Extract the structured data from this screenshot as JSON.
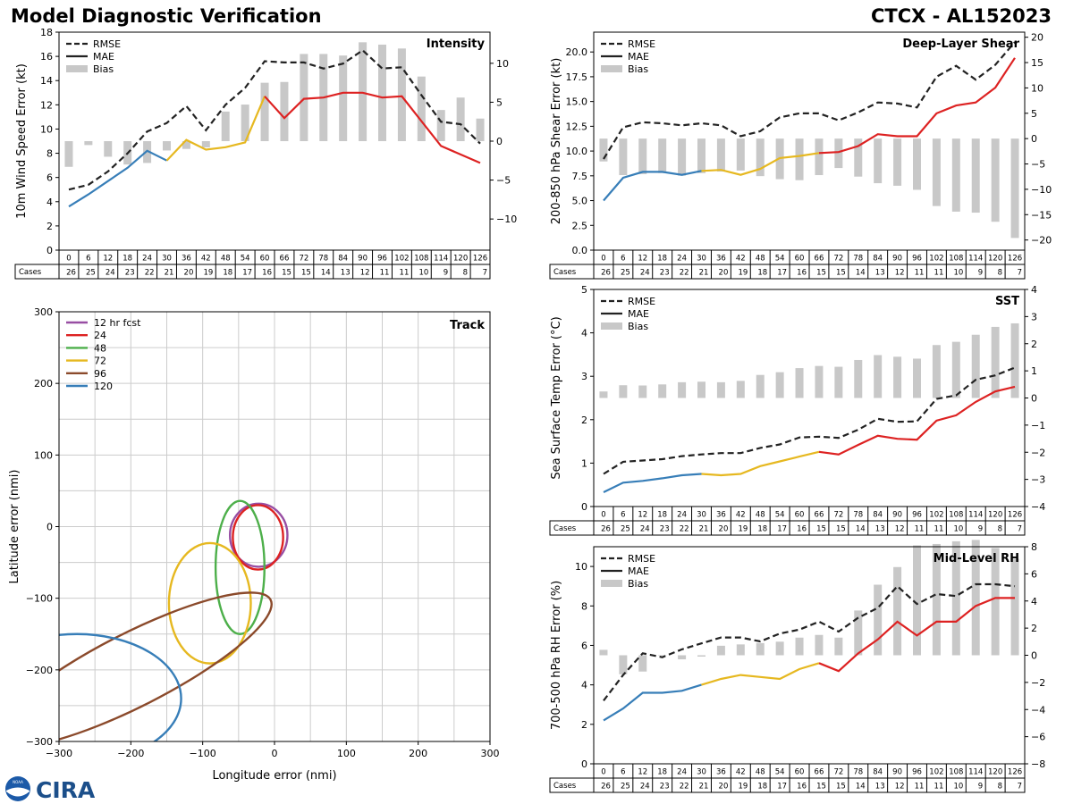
{
  "header": {
    "title": "Model Diagnostic Verification",
    "storm": "CTCX - AL152023"
  },
  "logos": {
    "noaa": "NOAA",
    "cira": "CIRA"
  },
  "colors": {
    "rmse": "#222222",
    "bias": "#c8c8c8",
    "grid": "#cccccc",
    "seg_blue": "#377eb8",
    "seg_yellow": "#e6b820",
    "seg_red": "#dd2222",
    "track_12": "#984ea3",
    "track_24": "#dd2222",
    "track_48": "#4daf4a",
    "track_72": "#e6b820",
    "track_96": "#8b4a2b",
    "track_120": "#377eb8"
  },
  "cases_label": "Cases",
  "chart_data": [
    {
      "id": "intensity",
      "type": "line",
      "title": "Intensity",
      "ylabel": "10m Wind Speed Error (kt)",
      "ylim": [
        0,
        18
      ],
      "yticks": [
        0,
        2,
        4,
        6,
        8,
        10,
        12,
        14,
        16,
        18
      ],
      "y2lim": [
        -14,
        14
      ],
      "y2ticks": [
        -10,
        -5,
        0,
        5,
        10
      ],
      "legend": [
        "RMSE",
        "MAE",
        "Bias"
      ],
      "hours": [
        0,
        6,
        12,
        18,
        24,
        30,
        36,
        42,
        48,
        54,
        60,
        66,
        72,
        78,
        84,
        90,
        96,
        102,
        108,
        114,
        120,
        126
      ],
      "cases": [
        26,
        25,
        24,
        23,
        22,
        21,
        20,
        19,
        18,
        17,
        16,
        15,
        15,
        14,
        13,
        12,
        11,
        11,
        10,
        9,
        8,
        7
      ],
      "rmse": [
        5.0,
        5.4,
        6.5,
        8.0,
        9.8,
        10.5,
        11.9,
        9.9,
        12.0,
        13.4,
        15.6,
        15.5,
        15.5,
        15.0,
        15.4,
        16.5,
        15.0,
        15.1,
        12.8,
        10.6,
        10.4,
        8.8
      ],
      "mae": [
        3.6,
        4.6,
        5.7,
        6.8,
        8.2,
        7.4,
        9.1,
        8.3,
        8.5,
        8.9,
        12.7,
        10.9,
        12.5,
        12.6,
        13.0,
        13.0,
        12.6,
        12.7,
        null,
        8.6,
        null,
        7.2
      ],
      "bias": [
        -3.3,
        -0.5,
        -2.0,
        -3.0,
        -2.8,
        -1.2,
        -1.0,
        -0.8,
        3.8,
        4.7,
        7.5,
        7.6,
        11.2,
        11.2,
        11.0,
        12.7,
        12.4,
        11.9,
        8.3,
        4.0,
        5.6,
        2.9
      ],
      "segments": [
        {
          "color": "seg_blue",
          "from": 0,
          "to": 5
        },
        {
          "color": "seg_yellow",
          "from": 5,
          "to": 10
        },
        {
          "color": "seg_red",
          "from": 10,
          "to": 21
        }
      ]
    },
    {
      "id": "shear",
      "type": "line",
      "title": "Deep-Layer Shear",
      "ylabel": "200-850 hPa Shear Error (kt)",
      "ylim": [
        0,
        22
      ],
      "yticks": [
        0.0,
        2.5,
        5.0,
        7.5,
        10.0,
        12.5,
        15.0,
        17.5,
        20.0
      ],
      "y2lim": [
        -22,
        21
      ],
      "y2ticks": [
        -20,
        -15,
        -10,
        -5,
        0,
        5,
        10,
        15,
        20
      ],
      "legend": [
        "RMSE",
        "MAE",
        "Bias"
      ],
      "hours": [
        0,
        6,
        12,
        18,
        24,
        30,
        36,
        42,
        48,
        54,
        60,
        66,
        72,
        78,
        84,
        90,
        96,
        102,
        108,
        114,
        120,
        126
      ],
      "cases": [
        26,
        25,
        24,
        23,
        22,
        21,
        20,
        19,
        18,
        17,
        16,
        15,
        15,
        14,
        13,
        12,
        11,
        11,
        10,
        9,
        8,
        7
      ],
      "rmse": [
        9.2,
        12.4,
        12.9,
        12.8,
        12.6,
        12.8,
        12.6,
        11.5,
        12.0,
        13.4,
        13.8,
        13.8,
        13.1,
        13.9,
        14.9,
        14.8,
        14.4,
        17.5,
        18.6,
        17.2,
        18.7,
        21.0
      ],
      "mae": [
        5.0,
        7.3,
        7.9,
        7.9,
        7.6,
        8.0,
        8.1,
        7.6,
        8.2,
        9.3,
        9.5,
        9.8,
        9.9,
        10.5,
        11.7,
        11.5,
        11.5,
        13.8,
        14.6,
        14.9,
        16.4,
        19.4
      ],
      "bias": [
        -4.5,
        -7.2,
        -7.0,
        -6.8,
        -7.3,
        -6.8,
        -6.5,
        -6.3,
        -7.4,
        -8.0,
        -8.2,
        -7.2,
        -5.8,
        -7.5,
        -8.8,
        -9.3,
        -10.1,
        -13.3,
        -14.4,
        -14.6,
        -16.4,
        -19.6
      ],
      "segments": [
        {
          "color": "seg_blue",
          "from": 0,
          "to": 5
        },
        {
          "color": "seg_yellow",
          "from": 5,
          "to": 11
        },
        {
          "color": "seg_red",
          "from": 11,
          "to": 21
        }
      ]
    },
    {
      "id": "sst",
      "type": "line",
      "title": "SST",
      "ylabel": "Sea Surface Temp Error (°C)",
      "ylim": [
        0,
        5
      ],
      "yticks": [
        0,
        1,
        2,
        3,
        4,
        5
      ],
      "y2lim": [
        -4,
        4
      ],
      "y2ticks": [
        -4,
        -3,
        -2,
        -1,
        0,
        1,
        2,
        3,
        4
      ],
      "legend": [
        "RMSE",
        "MAE",
        "Bias"
      ],
      "hours": [
        0,
        6,
        12,
        18,
        24,
        30,
        36,
        42,
        48,
        54,
        60,
        66,
        72,
        78,
        84,
        90,
        96,
        102,
        108,
        114,
        120,
        126
      ],
      "cases": [
        26,
        25,
        24,
        23,
        22,
        21,
        20,
        19,
        18,
        17,
        16,
        15,
        15,
        14,
        13,
        12,
        11,
        11,
        10,
        9,
        8,
        7
      ],
      "rmse": [
        0.75,
        1.03,
        1.06,
        1.09,
        1.16,
        1.2,
        1.23,
        1.23,
        1.35,
        1.43,
        1.59,
        1.61,
        1.58,
        1.77,
        2.02,
        1.95,
        1.96,
        2.48,
        2.56,
        2.92,
        3.02,
        3.2
      ],
      "mae": [
        0.33,
        0.55,
        0.59,
        0.65,
        0.72,
        0.75,
        0.72,
        0.75,
        0.93,
        1.04,
        1.15,
        1.26,
        1.2,
        1.42,
        1.63,
        1.56,
        1.54,
        1.98,
        2.1,
        2.41,
        2.65,
        2.76
      ],
      "bias": [
        0.24,
        0.47,
        0.46,
        0.5,
        0.58,
        0.6,
        0.58,
        0.63,
        0.85,
        0.95,
        1.1,
        1.18,
        1.15,
        1.4,
        1.58,
        1.52,
        1.45,
        1.95,
        2.07,
        2.33,
        2.62,
        2.75
      ],
      "segments": [
        {
          "color": "seg_blue",
          "from": 0,
          "to": 5
        },
        {
          "color": "seg_yellow",
          "from": 5,
          "to": 11
        },
        {
          "color": "seg_red",
          "from": 11,
          "to": 21
        }
      ]
    },
    {
      "id": "rh",
      "type": "line",
      "title": "Mid-Level RH",
      "ylabel": "700-500 hPa RH Error (%)",
      "ylim": [
        0,
        11
      ],
      "yticks": [
        0,
        2,
        4,
        6,
        8,
        10
      ],
      "y2lim": [
        -8,
        8
      ],
      "y2ticks": [
        -8,
        -6,
        -4,
        -2,
        0,
        2,
        4,
        6,
        8
      ],
      "legend": [
        "RMSE",
        "MAE",
        "Bias"
      ],
      "hours": [
        0,
        6,
        12,
        18,
        24,
        30,
        36,
        42,
        48,
        54,
        60,
        66,
        72,
        78,
        84,
        90,
        96,
        102,
        108,
        114,
        120,
        126
      ],
      "cases": [
        26,
        25,
        24,
        23,
        22,
        21,
        20,
        19,
        18,
        17,
        16,
        15,
        15,
        14,
        13,
        12,
        11,
        11,
        10,
        9,
        8,
        7
      ],
      "rmse": [
        3.2,
        4.5,
        5.6,
        5.4,
        5.8,
        6.1,
        6.4,
        6.4,
        6.2,
        6.6,
        6.8,
        7.2,
        6.7,
        7.4,
        7.9,
        9.0,
        8.1,
        8.6,
        8.5,
        9.1,
        9.1,
        9.0
      ],
      "mae": [
        2.2,
        2.8,
        3.6,
        3.6,
        3.7,
        4.0,
        4.3,
        4.5,
        4.4,
        4.3,
        4.8,
        5.1,
        4.7,
        5.6,
        6.3,
        7.2,
        6.5,
        7.2,
        7.2,
        8.0,
        8.4,
        8.4
      ],
      "bias": [
        0.4,
        -1.4,
        -1.2,
        0.0,
        -0.3,
        -0.1,
        0.7,
        0.8,
        0.9,
        1.0,
        1.3,
        1.5,
        1.3,
        3.3,
        5.2,
        6.5,
        8.1,
        8.2,
        8.4,
        8.5,
        7.9,
        7.1
      ],
      "segments": [
        {
          "color": "seg_blue",
          "from": 0,
          "to": 5
        },
        {
          "color": "seg_yellow",
          "from": 5,
          "to": 11
        },
        {
          "color": "seg_red",
          "from": 11,
          "to": 21
        }
      ]
    },
    {
      "id": "track",
      "type": "scatter",
      "title": "Track",
      "xlabel": "Longitude error (nmi)",
      "ylabel": "Latitude error (nmi)",
      "xlim": [
        -300,
        300
      ],
      "ylim": [
        -300,
        300
      ],
      "xticks": [
        -300,
        -200,
        -100,
        0,
        100,
        200,
        300
      ],
      "yticks": [
        -300,
        -200,
        -100,
        0,
        100,
        200,
        300
      ],
      "grid_step": 50,
      "legend": [
        "12 hr fcst",
        "24",
        "48",
        "72",
        "96",
        "120"
      ],
      "ellipses": [
        {
          "label": "12 hr fcst",
          "color": "track_12",
          "cx": -22,
          "cy": -12,
          "rx": 40,
          "ry": 44,
          "angle": 0
        },
        {
          "label": "24",
          "color": "track_24",
          "cx": -23,
          "cy": -15,
          "rx": 35,
          "ry": 45,
          "angle": 0
        },
        {
          "label": "48",
          "color": "track_48",
          "cx": -48,
          "cy": -57,
          "rx": 34,
          "ry": 93,
          "angle": 0
        },
        {
          "label": "72",
          "color": "track_72",
          "cx": -90,
          "cy": -107,
          "rx": 57,
          "ry": 84,
          "angle": 0
        },
        {
          "label": "96",
          "color": "track_96",
          "cx": -197,
          "cy": -200,
          "rx": 215,
          "ry": 51,
          "angle": 27
        },
        {
          "label": "120",
          "color": "track_120",
          "cx": -275,
          "cy": -240,
          "rx": 145,
          "ry": 90,
          "angle": 0
        }
      ]
    }
  ]
}
